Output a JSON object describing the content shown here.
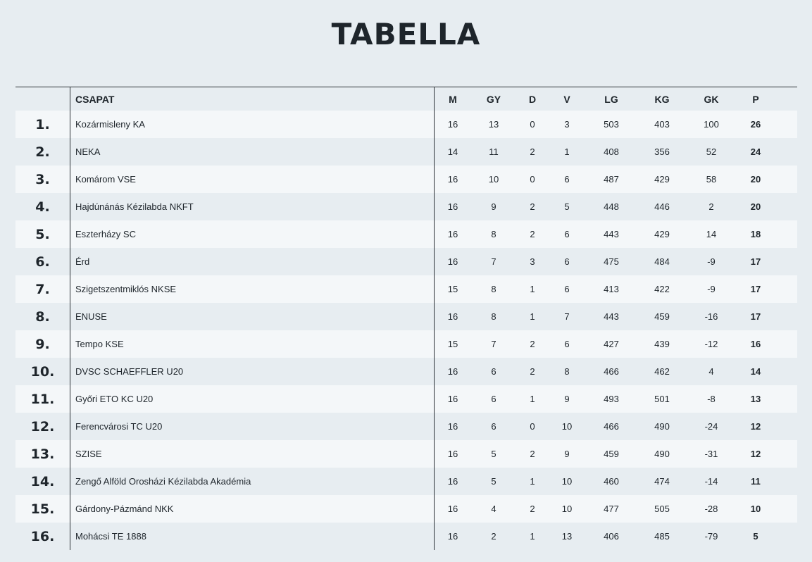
{
  "page": {
    "title": "TABELLA"
  },
  "table": {
    "headers": {
      "rank": "",
      "team": "CSAPAT",
      "m": "M",
      "gy": "GY",
      "d": "D",
      "v": "V",
      "lg": "LG",
      "kg": "KG",
      "gk": "GK",
      "p": "P"
    },
    "rows": [
      {
        "rank": "1.",
        "team": "Kozármisleny KA",
        "m": "16",
        "gy": "13",
        "d": "0",
        "v": "3",
        "lg": "503",
        "kg": "403",
        "gk": "100",
        "p": "26"
      },
      {
        "rank": "2.",
        "team": "NEKA",
        "m": "14",
        "gy": "11",
        "d": "2",
        "v": "1",
        "lg": "408",
        "kg": "356",
        "gk": "52",
        "p": "24"
      },
      {
        "rank": "3.",
        "team": "Komárom VSE",
        "m": "16",
        "gy": "10",
        "d": "0",
        "v": "6",
        "lg": "487",
        "kg": "429",
        "gk": "58",
        "p": "20"
      },
      {
        "rank": "4.",
        "team": "Hajdúnánás Kézilabda NKFT",
        "m": "16",
        "gy": "9",
        "d": "2",
        "v": "5",
        "lg": "448",
        "kg": "446",
        "gk": "2",
        "p": "20"
      },
      {
        "rank": "5.",
        "team": "Eszterházy SC",
        "m": "16",
        "gy": "8",
        "d": "2",
        "v": "6",
        "lg": "443",
        "kg": "429",
        "gk": "14",
        "p": "18"
      },
      {
        "rank": "6.",
        "team": "Érd",
        "m": "16",
        "gy": "7",
        "d": "3",
        "v": "6",
        "lg": "475",
        "kg": "484",
        "gk": "-9",
        "p": "17"
      },
      {
        "rank": "7.",
        "team": "Szigetszentmiklós NKSE",
        "m": "15",
        "gy": "8",
        "d": "1",
        "v": "6",
        "lg": "413",
        "kg": "422",
        "gk": "-9",
        "p": "17"
      },
      {
        "rank": "8.",
        "team": "ENUSE",
        "m": "16",
        "gy": "8",
        "d": "1",
        "v": "7",
        "lg": "443",
        "kg": "459",
        "gk": "-16",
        "p": "17"
      },
      {
        "rank": "9.",
        "team": "Tempo KSE",
        "m": "15",
        "gy": "7",
        "d": "2",
        "v": "6",
        "lg": "427",
        "kg": "439",
        "gk": "-12",
        "p": "16"
      },
      {
        "rank": "10.",
        "team": "DVSC SCHAEFFLER U20",
        "m": "16",
        "gy": "6",
        "d": "2",
        "v": "8",
        "lg": "466",
        "kg": "462",
        "gk": "4",
        "p": "14"
      },
      {
        "rank": "11.",
        "team": "Győri ETO KC U20",
        "m": "16",
        "gy": "6",
        "d": "1",
        "v": "9",
        "lg": "493",
        "kg": "501",
        "gk": "-8",
        "p": "13"
      },
      {
        "rank": "12.",
        "team": "Ferencvárosi TC U20",
        "m": "16",
        "gy": "6",
        "d": "0",
        "v": "10",
        "lg": "466",
        "kg": "490",
        "gk": "-24",
        "p": "12"
      },
      {
        "rank": "13.",
        "team": "SZISE",
        "m": "16",
        "gy": "5",
        "d": "2",
        "v": "9",
        "lg": "459",
        "kg": "490",
        "gk": "-31",
        "p": "12"
      },
      {
        "rank": "14.",
        "team": "Zengő Alföld Orosházi Kézilabda Akadémia",
        "m": "16",
        "gy": "5",
        "d": "1",
        "v": "10",
        "lg": "460",
        "kg": "474",
        "gk": "-14",
        "p": "11"
      },
      {
        "rank": "15.",
        "team": "Gárdony-Pázmánd NKK",
        "m": "16",
        "gy": "4",
        "d": "2",
        "v": "10",
        "lg": "477",
        "kg": "505",
        "gk": "-28",
        "p": "10"
      },
      {
        "rank": "16.",
        "team": "Mohácsi TE 1888",
        "m": "16",
        "gy": "2",
        "d": "1",
        "v": "13",
        "lg": "406",
        "kg": "485",
        "gk": "-79",
        "p": "5"
      }
    ]
  }
}
